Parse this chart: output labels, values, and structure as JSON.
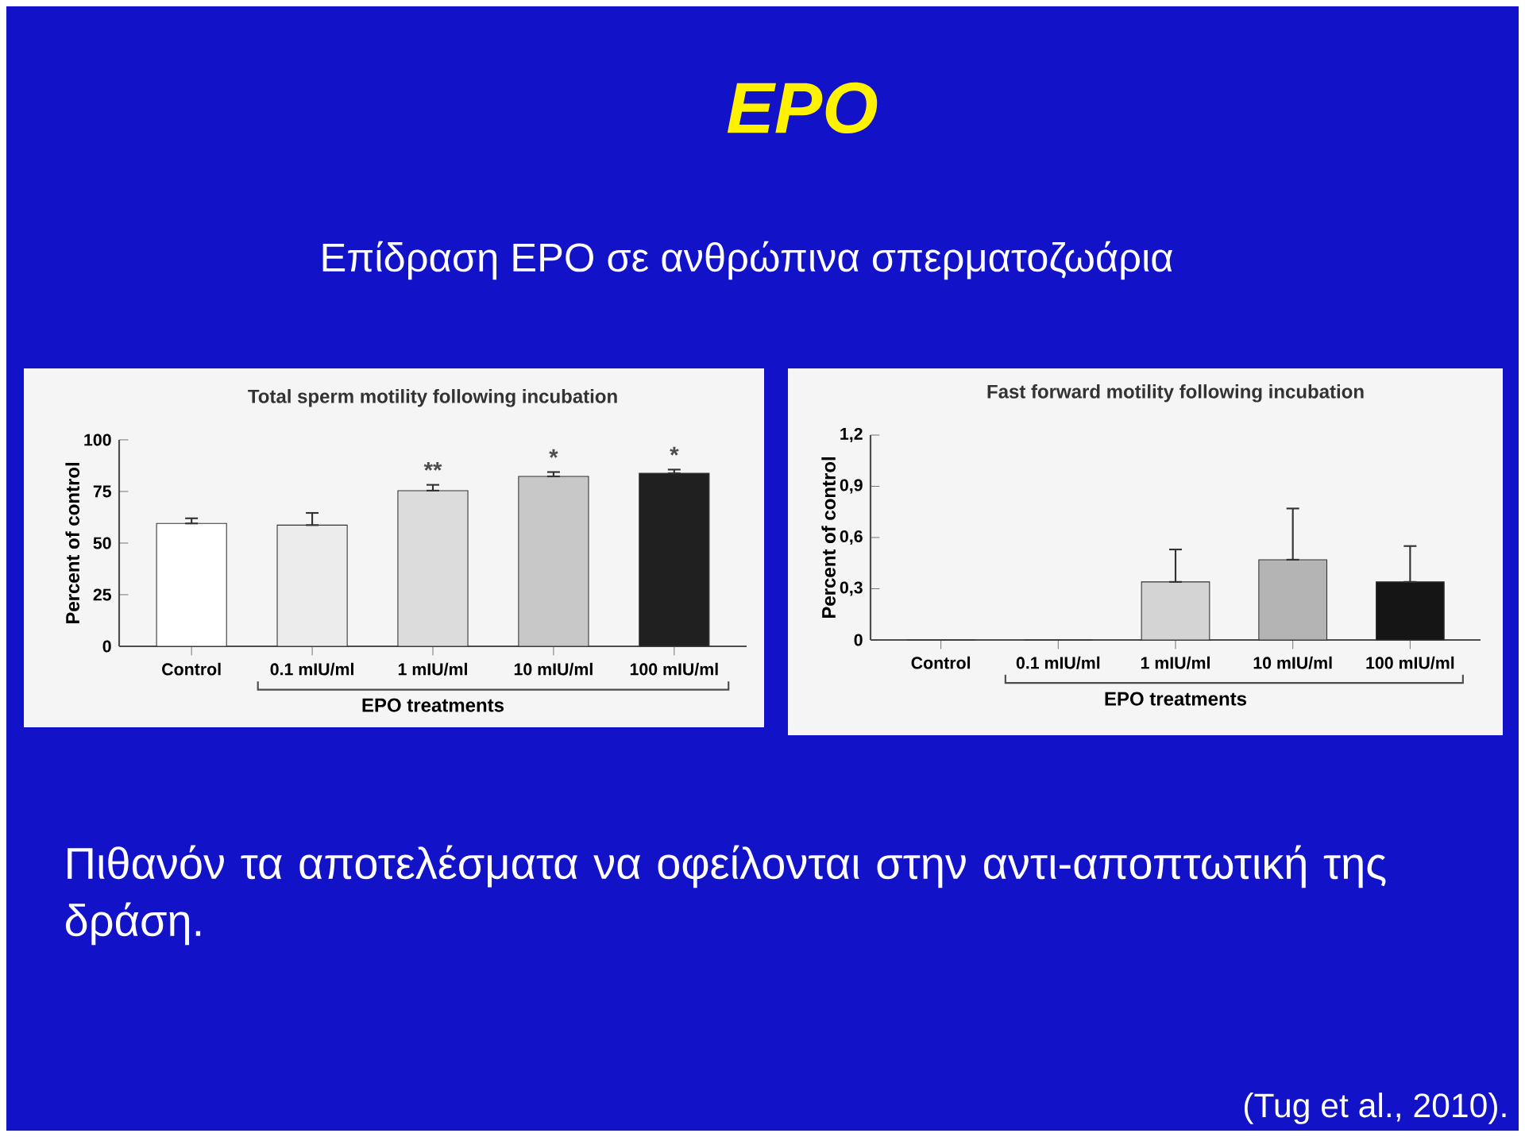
{
  "chart_data": [
    {
      "type": "other",
      "title": "EPO",
      "subtitle": "Επίδραση EPO σε ανθρώπινα σπερματοζωάρια",
      "annotations": [
        "Πιθανόν τα αποτελέσματα να οφείλονται στην αντι-αποπτωτική της δράση.",
        "(Tug et al., 2010)."
      ]
    },
    {
      "type": "bar",
      "title": "Total sperm motility following incubation",
      "xlabel": "EPO treatments",
      "ylabel": "Percent of control",
      "categories": [
        "Control",
        "0.1 mIU/ml",
        "1 mIU/ml",
        "10 mIU/ml",
        "100 mIU/ml"
      ],
      "values": [
        59.5,
        58.7,
        75.4,
        82.3,
        83.8
      ],
      "errors": [
        [
          59.5,
          62
        ],
        [
          58.7,
          64.6
        ],
        [
          75.4,
          78.2
        ],
        [
          82.3,
          84.4
        ],
        [
          83.8,
          85.6
        ]
      ],
      "colors": [
        "#ffffff",
        "#ececec",
        "#dcdcdc",
        "#c8c8c8",
        "#202020"
      ],
      "ylim": [
        0,
        100
      ],
      "yticks": [
        0,
        25,
        50,
        75,
        100
      ],
      "annotations": [
        "**",
        "*",
        "*"
      ]
    },
    {
      "type": "bar",
      "title": "Fast forward motility following incubation",
      "xlabel": "EPO treatments",
      "ylabel": "Percent of control",
      "categories": [
        "Control",
        "0.1 mIU/ml",
        "1 mIU/ml",
        "10 mIU/ml",
        "100 mIU/ml"
      ],
      "values": [
        0,
        0,
        0.34,
        0.47,
        0.34
      ],
      "errors": [
        null,
        null,
        [
          0.34,
          0.53
        ],
        [
          0.47,
          0.77
        ],
        [
          0.34,
          0.55
        ]
      ],
      "colors": [
        "#ffffff",
        "#ececec",
        "#d4d4d4",
        "#b4b4b4",
        "#151515"
      ],
      "ylim": [
        0,
        1.2
      ],
      "yticks": [
        0,
        {
          "value": 0.3,
          "label": "0,3"
        },
        {
          "value": 0.6,
          "label": "0,6"
        },
        {
          "value": 0.9,
          "label": "0,9"
        },
        {
          "value": 1.2,
          "label": "1,2"
        }
      ]
    }
  ]
}
